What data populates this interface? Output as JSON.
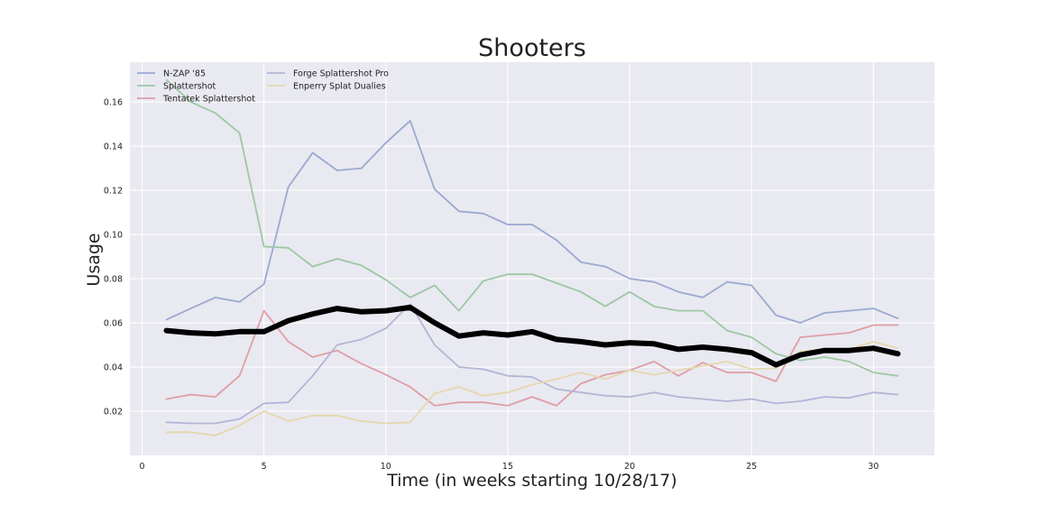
{
  "chart_data": {
    "type": "line",
    "title": "Shooters",
    "xlabel": "Time (in weeks starting 10/28/17)",
    "ylabel": "Usage",
    "xlim": [
      -0.5,
      32.5
    ],
    "ylim": [
      0.0,
      0.178
    ],
    "x_ticks": [
      0,
      5,
      10,
      15,
      20,
      25,
      30
    ],
    "y_ticks": [
      0.02,
      0.04,
      0.06,
      0.08,
      0.1,
      0.12,
      0.14,
      0.16
    ],
    "y_tick_labels": [
      "0.02",
      "0.04",
      "0.06",
      "0.08",
      "0.10",
      "0.12",
      "0.14",
      "0.16"
    ],
    "grid": true,
    "legend_position": "top-left",
    "x": [
      1,
      2,
      3,
      4,
      5,
      6,
      7,
      8,
      9,
      10,
      11,
      12,
      13,
      14,
      15,
      16,
      17,
      18,
      19,
      20,
      21,
      22,
      23,
      24,
      25,
      26,
      27,
      28,
      29,
      30,
      31
    ],
    "series": [
      {
        "name": "N-ZAP '85",
        "color": "#9aa9d1",
        "values": [
          0.0615,
          0.0665,
          0.0715,
          0.0695,
          0.0775,
          0.1215,
          0.137,
          0.129,
          0.13,
          0.1415,
          0.1515,
          0.1205,
          0.1105,
          0.1095,
          0.1045,
          0.1045,
          0.0975,
          0.0875,
          0.0855,
          0.08,
          0.0785,
          0.074,
          0.0715,
          0.0785,
          0.077,
          0.0635,
          0.06,
          0.0645,
          0.0655,
          0.0665,
          0.062
        ]
      },
      {
        "name": "Splattershot",
        "color": "#9dc7a5",
        "values": [
          0.17,
          0.16,
          0.155,
          0.146,
          0.0945,
          0.094,
          0.0855,
          0.089,
          0.086,
          0.0795,
          0.0715,
          0.077,
          0.0655,
          0.079,
          0.082,
          0.082,
          0.078,
          0.074,
          0.0675,
          0.074,
          0.0675,
          0.0655,
          0.0655,
          0.0565,
          0.0535,
          0.046,
          0.043,
          0.0445,
          0.0425,
          0.0375,
          0.036
        ]
      },
      {
        "name": "Tentatek Splattershot",
        "color": "#df9ea5",
        "values": [
          0.0255,
          0.0275,
          0.0265,
          0.036,
          0.0655,
          0.0515,
          0.0445,
          0.0475,
          0.0415,
          0.0365,
          0.031,
          0.0225,
          0.024,
          0.024,
          0.0225,
          0.0265,
          0.0225,
          0.0325,
          0.0365,
          0.0385,
          0.0425,
          0.036,
          0.042,
          0.0375,
          0.0375,
          0.0335,
          0.0535,
          0.0545,
          0.0555,
          0.059,
          0.059
        ]
      },
      {
        "name": "Forge Splattershot Pro",
        "color": "#b5b3d6",
        "values": [
          0.015,
          0.0145,
          0.0145,
          0.0165,
          0.0235,
          0.024,
          0.036,
          0.05,
          0.0525,
          0.0575,
          0.0685,
          0.05,
          0.04,
          0.039,
          0.036,
          0.0355,
          0.03,
          0.0285,
          0.027,
          0.0265,
          0.0285,
          0.0265,
          0.0255,
          0.0245,
          0.0255,
          0.0235,
          0.0245,
          0.0265,
          0.026,
          0.0285,
          0.0275
        ]
      },
      {
        "name": "Enperry Splat Dualies",
        "color": "#e6d7ad",
        "values": [
          0.0105,
          0.0105,
          0.009,
          0.0135,
          0.02,
          0.0155,
          0.018,
          0.018,
          0.0155,
          0.0145,
          0.015,
          0.028,
          0.031,
          0.027,
          0.0285,
          0.032,
          0.0345,
          0.0375,
          0.0345,
          0.0385,
          0.0365,
          0.0385,
          0.0405,
          0.0425,
          0.039,
          0.0395,
          0.047,
          0.048,
          0.048,
          0.0515,
          0.0485
        ]
      },
      {
        "name": "",
        "color": "#000000",
        "values": [
          0.0565,
          0.0555,
          0.055,
          0.056,
          0.056,
          0.061,
          0.064,
          0.0665,
          0.065,
          0.0655,
          0.067,
          0.06,
          0.054,
          0.0555,
          0.0545,
          0.056,
          0.0525,
          0.0515,
          0.05,
          0.051,
          0.0505,
          0.048,
          0.049,
          0.048,
          0.0465,
          0.041,
          0.0455,
          0.0475,
          0.0475,
          0.0485,
          0.046
        ]
      }
    ],
    "colors": {
      "background": "#ffffff",
      "axes_background": "#e9e9f1",
      "grid": "#ffffff",
      "text": "#222222"
    }
  }
}
